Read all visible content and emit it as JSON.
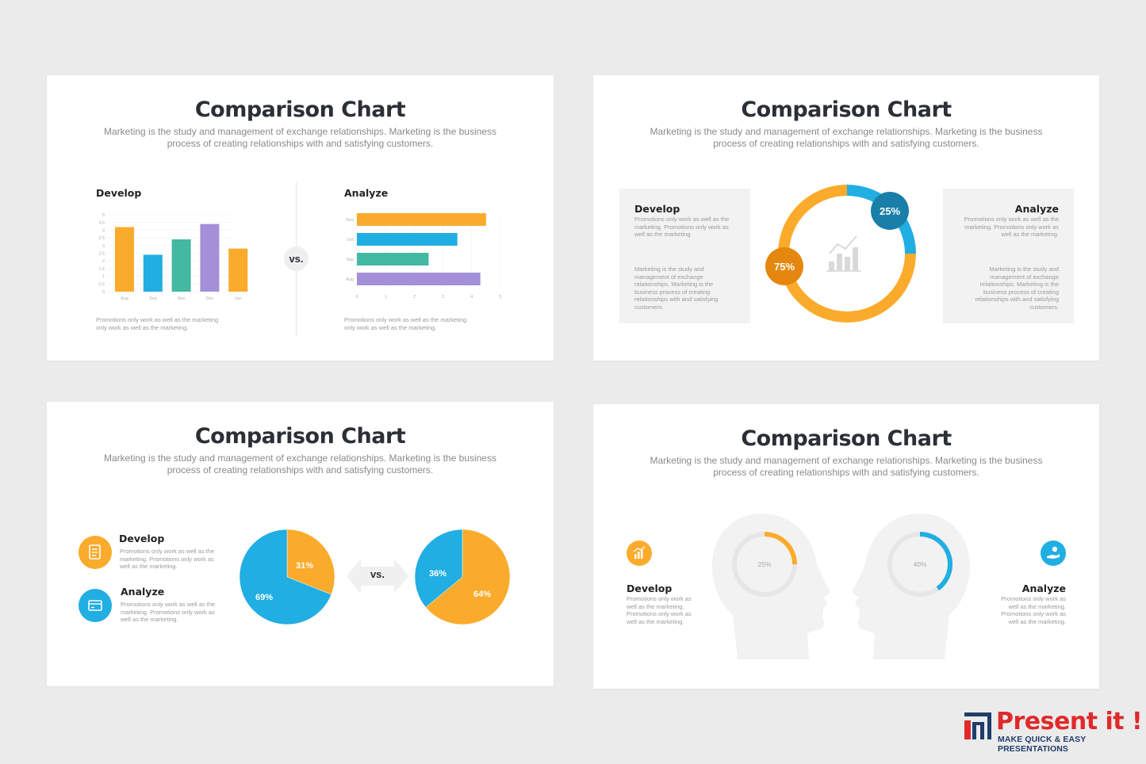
{
  "colors": {
    "orange": "#fbab2c",
    "blue": "#21aee2",
    "teal": "#43b8a2",
    "purple": "#a490d8",
    "darkblue": "#1a7fa8",
    "darkorange": "#e5870f",
    "gray": "#f2f2f2"
  },
  "slides": [
    {
      "title": "Comparison Chart",
      "desc_line1": "Marketing is the study and management of exchange relationships. Marketing is the business",
      "desc_line2": "process of creating relationships with and satisfying customers.",
      "left_heading": "Develop",
      "right_heading": "Analyze",
      "vs": "vs.",
      "left_note1": "Promotions only work as well as the marketing",
      "left_note2": "only work as well as the marketing.",
      "right_note1": "Promotions only work as well as the marketing",
      "right_note2": "only work as well as the marketing."
    },
    {
      "title": "Comparison Chart",
      "desc_line1": "Marketing is the study and management of exchange relationships. Marketing is the business",
      "desc_line2": "process of creating relationships with and satisfying customers.",
      "left_heading": "Develop",
      "left_text1": "Promotions only work as well as the marketing. Promotions only work as well as the marketing.",
      "left_text2": "Marketing is the study and management of exchange relationships. Marketing is the business process of creating relationships with and satisfying customers.",
      "right_heading": "Analyze",
      "right_text1": "Promotions only work as well as the marketing. Promotions only work as well as the marketing.",
      "right_text2": "Marketing is the study and management of exchange relationships. Marketing is the business process of creating relationships with and satisfying customers.",
      "icon": "growth-chart-icon"
    },
    {
      "title": "Comparison Chart",
      "desc_line1": "Marketing is the study and management of exchange relationships. Marketing is the business",
      "desc_line2": "process of creating relationships with and satisfying customers.",
      "item1_heading": "Develop",
      "item1_text": "Promotions only work as well as the marketing. Promotions only work as well as the marketing.",
      "item1_icon": "document-icon",
      "item2_heading": "Analyze",
      "item2_text": "Promotions only work as well as the marketing. Promotions only work as well as the marketing.",
      "item2_icon": "card-icon",
      "vs": "vs."
    },
    {
      "title": "Comparison Chart",
      "desc_line1": "Marketing is the study and management of exchange relationships. Marketing is the business",
      "desc_line2": "process of creating relationships with and satisfying customers.",
      "left_heading": "Develop",
      "left_text": "Promotions only work as well as the marketing. Promotions only work as well as the marketing.",
      "left_icon": "bar-chart-icon",
      "right_heading": "Analyze",
      "right_text": "Promotions only work as well as the marketing. Promotions only work as well as the marketing.",
      "right_icon": "hand-coin-icon"
    }
  ],
  "chart_data": [
    {
      "type": "bar",
      "categories": [
        "Aug",
        "Sep",
        "Nov",
        "Dec",
        "Jan"
      ],
      "values": [
        4.2,
        2.4,
        3.4,
        4.4,
        2.8
      ],
      "colors": [
        "#fbab2c",
        "#21aee2",
        "#43b8a2",
        "#a490d8",
        "#fbab2c"
      ],
      "yticks": [
        "0",
        "0.5",
        "1",
        "1.5",
        "2",
        "2.5",
        "3",
        "3.5",
        "4",
        "4.5",
        "5"
      ],
      "ylim": [
        0,
        5
      ],
      "title": "Develop"
    },
    {
      "type": "bar",
      "orientation": "horizontal",
      "categories": [
        "Nov",
        "Oct",
        "Sep",
        "Aug"
      ],
      "values": [
        4.5,
        3.5,
        2.5,
        4.3
      ],
      "colors": [
        "#fbab2c",
        "#21aee2",
        "#43b8a2",
        "#a490d8"
      ],
      "xticks": [
        "0",
        "1",
        "2",
        "3",
        "4",
        "5"
      ],
      "xlim": [
        0,
        5
      ],
      "title": "Analyze"
    },
    {
      "type": "pie",
      "donut": true,
      "slices": [
        {
          "label": "25%",
          "value": 25,
          "color": "#21aee2"
        },
        {
          "label": "75%",
          "value": 75,
          "color": "#fbab2c"
        }
      ]
    },
    {
      "type": "pie",
      "slices": [
        {
          "label": "31%",
          "value": 31,
          "color": "#fbab2c"
        },
        {
          "label": "69%",
          "value": 69,
          "color": "#21aee2"
        }
      ]
    },
    {
      "type": "pie",
      "slices": [
        {
          "label": "64%",
          "value": 64,
          "color": "#fbab2c"
        },
        {
          "label": "36%",
          "value": 36,
          "color": "#21aee2"
        }
      ]
    },
    {
      "type": "pie",
      "donut": true,
      "slices": [
        {
          "label": "25%",
          "value": 25,
          "color": "#fbab2c"
        }
      ]
    },
    {
      "type": "pie",
      "donut": true,
      "slices": [
        {
          "label": "40%",
          "value": 40,
          "color": "#21aee2"
        }
      ]
    }
  ],
  "brand": {
    "name": "Present it !",
    "tagline": "MAKE QUICK & EASY PRESENTATIONS"
  }
}
